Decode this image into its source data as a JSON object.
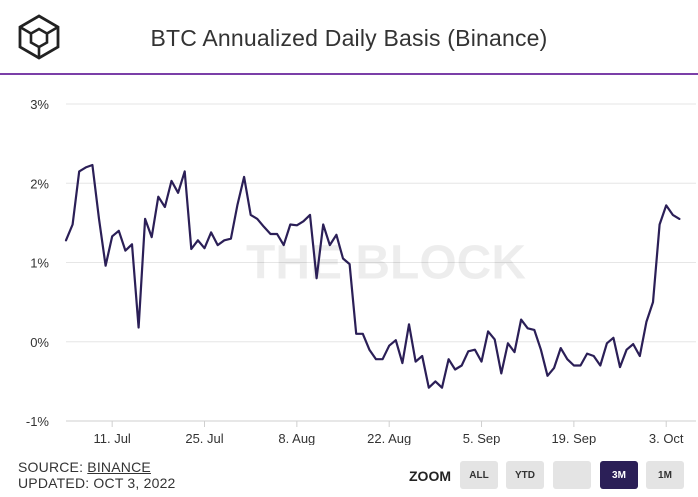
{
  "header": {
    "logo_icon": "the-block-cube-logo",
    "title": "BTC Annualized Daily Basis (Binance)",
    "accent_color": "#7b3fa8"
  },
  "watermark": "THE BLOCK",
  "footer": {
    "source_label": "SOURCE: ",
    "source_name": "BINANCE",
    "updated": "UPDATED: OCT 3, 2022"
  },
  "zoom": {
    "label": "ZOOM",
    "buttons": [
      "ALL",
      "YTD",
      "",
      "3M",
      "1M"
    ],
    "active": "3M",
    "active_color": "#2b1f57"
  },
  "chart_data": {
    "type": "line",
    "title": "BTC Annualized Daily Basis (Binance)",
    "xlabel": "",
    "ylabel": "",
    "ylim": [
      -1,
      3
    ],
    "yticks": [
      "3%",
      "2%",
      "1%",
      "0%",
      "-1%"
    ],
    "ytick_values": [
      3,
      2,
      1,
      0,
      -1
    ],
    "xticks": [
      "11. Jul",
      "25. Jul",
      "8. Aug",
      "22. Aug",
      "5. Sep",
      "19. Sep",
      "3. Oct"
    ],
    "xtick_values": [
      7,
      21,
      35,
      49,
      63,
      77,
      91
    ],
    "x_range": [
      0,
      94
    ],
    "grid": true,
    "line_color": "#2b1f57",
    "series": [
      {
        "name": "BTC Annualized Daily Basis",
        "x": [
          0,
          1,
          2,
          3,
          4,
          5,
          6,
          7,
          8,
          9,
          10,
          11,
          12,
          13,
          14,
          15,
          16,
          17,
          18,
          19,
          20,
          21,
          22,
          23,
          24,
          25,
          26,
          27,
          28,
          29,
          30,
          31,
          32,
          33,
          34,
          35,
          36,
          37,
          38,
          39,
          40,
          41,
          42,
          43,
          44,
          45,
          46,
          47,
          48,
          49,
          50,
          51,
          52,
          53,
          54,
          55,
          56,
          57,
          58,
          59,
          60,
          61,
          62,
          63,
          64,
          65,
          66,
          67,
          68,
          69,
          70,
          71,
          72,
          73,
          74,
          75,
          76,
          77,
          78,
          79,
          80,
          81,
          82,
          83,
          84,
          85,
          86,
          87,
          88,
          89,
          90,
          91,
          92,
          93
        ],
        "values": [
          1.28,
          1.48,
          2.15,
          2.2,
          2.23,
          1.55,
          0.96,
          1.33,
          1.4,
          1.15,
          1.23,
          0.18,
          1.55,
          1.32,
          1.83,
          1.7,
          2.03,
          1.88,
          2.15,
          1.17,
          1.28,
          1.18,
          1.38,
          1.22,
          1.28,
          1.3,
          1.73,
          2.08,
          1.6,
          1.55,
          1.45,
          1.36,
          1.36,
          1.22,
          1.48,
          1.47,
          1.52,
          1.6,
          0.8,
          1.48,
          1.22,
          1.35,
          1.05,
          0.98,
          0.1,
          0.1,
          -0.1,
          -0.22,
          -0.22,
          -0.05,
          0.02,
          -0.27,
          0.22,
          -0.25,
          -0.18,
          -0.58,
          -0.5,
          -0.58,
          -0.22,
          -0.35,
          -0.3,
          -0.12,
          -0.1,
          -0.25,
          0.13,
          0.03,
          -0.4,
          -0.02,
          -0.13,
          0.28,
          0.17,
          0.15,
          -0.1,
          -0.43,
          -0.33,
          -0.08,
          -0.22,
          -0.3,
          -0.3,
          -0.15,
          -0.18,
          -0.3,
          -0.02,
          0.05,
          -0.32,
          -0.1,
          -0.03,
          -0.18,
          0.25,
          0.5,
          1.48,
          1.72,
          1.6,
          1.55
        ]
      }
    ]
  }
}
